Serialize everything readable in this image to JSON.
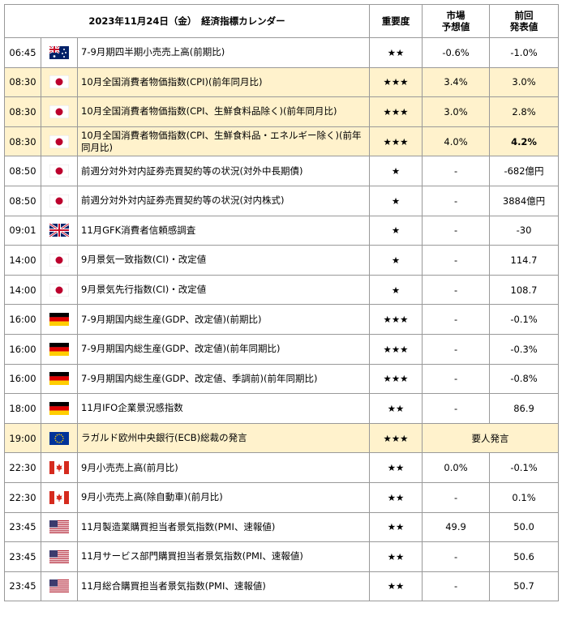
{
  "header": {
    "title": "2023年11月24日（金）　経済指標カレンダー",
    "importance": "重要度",
    "forecast": "市場\n予想値",
    "previous": "前回\n発表値"
  },
  "rows": [
    [
      "06:45",
      "7-9月期四半期小売売上高(前期比)",
      "★★",
      "-0.6%",
      "-1.0%"
    ],
    [
      "08:30",
      "10月全国消費者物価指数(CPI)(前年同月比)",
      "★★★",
      "3.4%",
      "3.0%"
    ],
    [
      "08:30",
      "10月全国消費者物価指数(CPI、生鮮食料品除く)(前年同月比)",
      "★★★",
      "3.0%",
      "2.8%"
    ],
    [
      "08:30",
      "10月全国消費者物価指数(CPI、生鮮食料品・エネルギー除く)(前年同月比)",
      "★★★",
      "4.0%",
      "4.2%"
    ],
    [
      "08:50",
      "前週分対外対内証券売買契約等の状況(対外中長期債)",
      "★",
      "-",
      "-682億円"
    ],
    [
      "08:50",
      "前週分対外対内証券売買契約等の状況(対内株式)",
      "★",
      "-",
      "3884億円"
    ],
    [
      "09:01",
      "11月GFK消費者信頼感調査",
      "★",
      "-",
      "-30"
    ],
    [
      "14:00",
      "9月景気一致指数(CI)・改定値",
      "★",
      "-",
      "114.7"
    ],
    [
      "14:00",
      "9月景気先行指数(CI)・改定値",
      "★",
      "-",
      "108.7"
    ],
    [
      "16:00",
      "7-9月期国内総生産(GDP、改定値)(前期比)",
      "★★★",
      "-",
      "-0.1%"
    ],
    [
      "16:00",
      "7-9月期国内総生産(GDP、改定値)(前年同期比)",
      "★★★",
      "-",
      "-0.3%"
    ],
    [
      "16:00",
      "7-9月期国内総生産(GDP、改定値、季調前)(前年同期比)",
      "★★★",
      "-",
      "-0.8%"
    ],
    [
      "18:00",
      "11月IFO企業景況感指数",
      "★★",
      "-",
      "86.9"
    ],
    [
      "19:00",
      "ラガルド欧州中央銀行(ECB)総裁の発言",
      "★★★",
      "要人発言"
    ],
    [
      "22:30",
      "9月小売売上高(前月比)",
      "★★",
      "0.0%",
      "-0.1%"
    ],
    [
      "22:30",
      "9月小売売上高(除自動車)(前月比)",
      "★★",
      "-",
      "0.1%"
    ],
    [
      "23:45",
      "11月製造業購買担当者景気指数(PMI、速報値)",
      "★★",
      "49.9",
      "50.0"
    ],
    [
      "23:45",
      "11月サービス部門購買担当者景気指数(PMI、速報値)",
      "★★",
      "-",
      "50.6"
    ],
    [
      "23:45",
      "11月総合購買担当者景気指数(PMI、速報値)",
      "★★",
      "-",
      "50.7"
    ]
  ]
}
